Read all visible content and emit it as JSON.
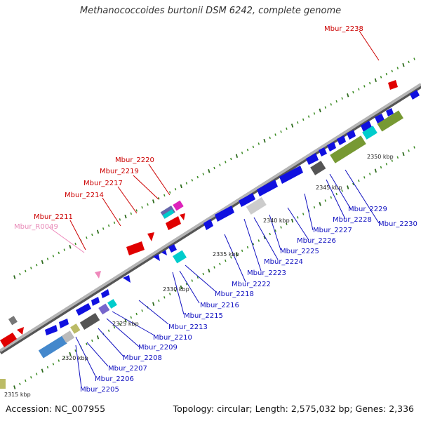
{
  "title": "Methanococcoides burtonii DSM 6242, complete genome",
  "footer": {
    "accession": "Accession: NC_007955",
    "summary": "Topology: circular; Length: 2,575,032 bp; Genes: 2,336"
  },
  "colors": {
    "forward_gene": "#e00000",
    "reverse_gene": "#1010e0",
    "rna_gene": "#ee88bb",
    "backbone": "#999999"
  },
  "scale_labels": [
    "2315 kbp",
    "2320 kbp",
    "2325 kbp",
    "2330 kbp",
    "2335 kbp",
    "2340 kbp",
    "2345 kbp",
    "2350 kbp"
  ],
  "top_gene_labels": [
    {
      "text": "Mbur_2238",
      "color": "#cc0000"
    },
    {
      "text": "Mbur_2220",
      "color": "#cc0000"
    },
    {
      "text": "Mbur_2219",
      "color": "#cc0000"
    },
    {
      "text": "Mbur_2217",
      "color": "#cc0000"
    },
    {
      "text": "Mbur_2214",
      "color": "#cc0000"
    },
    {
      "text": "Mbur_2211",
      "color": "#cc0000"
    },
    {
      "text": "Mbur_R0049",
      "color": "#e88bb8"
    }
  ],
  "bottom_gene_labels": [
    "Mbur_2230",
    "Mbur_2229",
    "Mbur_2228",
    "Mbur_2227",
    "Mbur_2226",
    "Mbur_2225",
    "Mbur_2224",
    "Mbur_2223",
    "Mbur_2222",
    "Mbur_2218",
    "Mbur_2216",
    "Mbur_2215",
    "Mbur_2213",
    "Mbur_2210",
    "Mbur_2209",
    "Mbur_2208",
    "Mbur_2207",
    "Mbur_2206",
    "Mbur_2205"
  ]
}
